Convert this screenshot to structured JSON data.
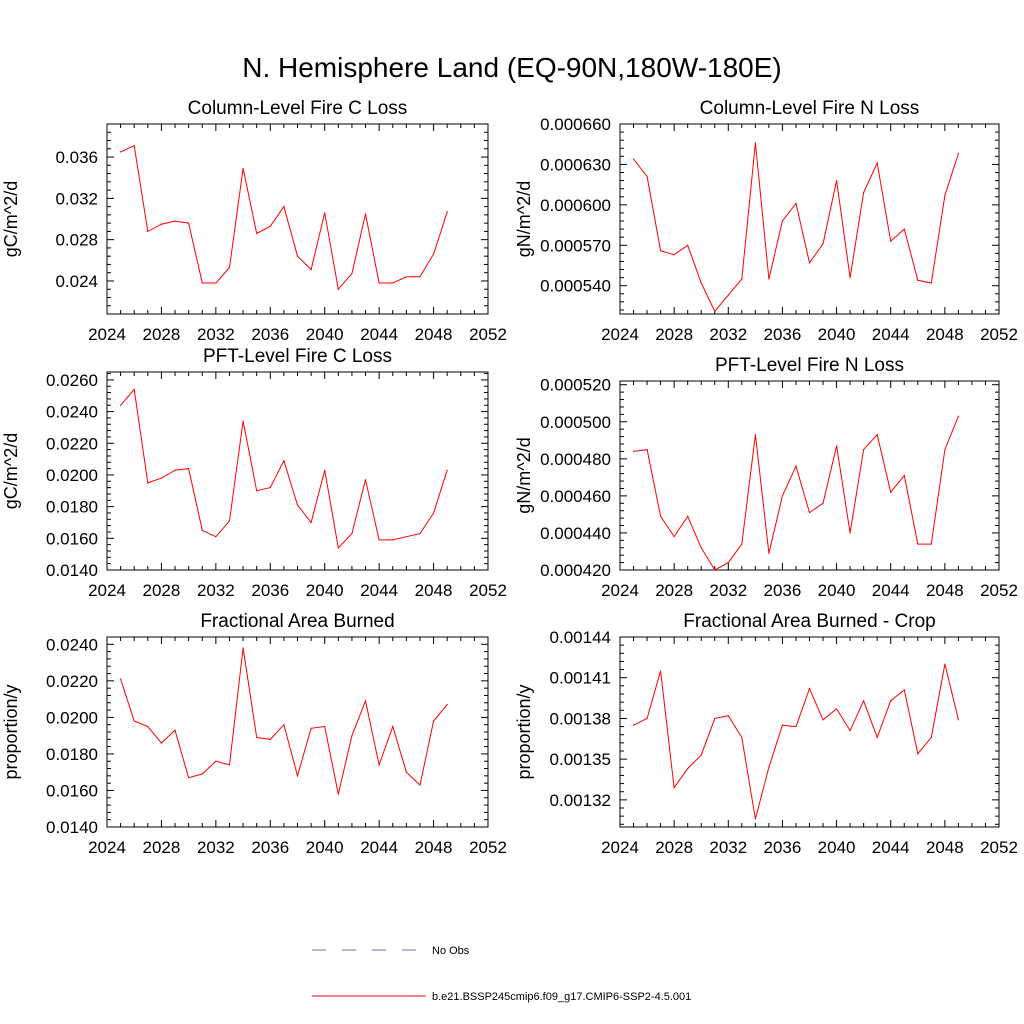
{
  "figure": {
    "title": "N. Hemisphere Land (EQ-90N,180W-180E)",
    "colors": {
      "model_line": "#ff0000",
      "obs_line": "#6a6ab8",
      "axis": "#000000"
    }
  },
  "legend": {
    "entries": [
      {
        "label": "No Obs",
        "style": "dashed",
        "color": "#6a6ab8"
      },
      {
        "label": "b.e21.BSSP245cmip6.f09_g17.CMIP6-SSP2-4.5.001",
        "style": "solid",
        "color": "#ff0000"
      }
    ]
  },
  "chart_data": [
    {
      "type": "line",
      "title": "Column-Level Fire C Loss",
      "xlabel": "",
      "ylabel": "gC/m^2/d",
      "xlim": [
        2024,
        2052
      ],
      "ylim": [
        0.0208,
        0.0392
      ],
      "xticks": [
        "2024",
        "2028",
        "2032",
        "2036",
        "2040",
        "2044",
        "2048",
        "2052"
      ],
      "yticks": [
        0.024,
        0.028,
        0.032,
        0.036
      ],
      "ytick_labels": [
        "0.024",
        "0.028",
        "0.032",
        "0.036"
      ],
      "x": [
        2025,
        2026,
        2027,
        2028,
        2029,
        2030,
        2031,
        2032,
        2033,
        2034,
        2035,
        2036,
        2037,
        2038,
        2039,
        2040,
        2041,
        2042,
        2043,
        2044,
        2045,
        2046,
        2047,
        2048,
        2049
      ],
      "series": [
        {
          "values": [
            0.0365,
            0.0371,
            0.0288,
            0.0295,
            0.0298,
            0.0296,
            0.0238,
            0.0238,
            0.0253,
            0.0349,
            0.0286,
            0.0293,
            0.0312,
            0.0264,
            0.0251,
            0.0306,
            0.0232,
            0.0247,
            0.0305,
            0.0238,
            0.0238,
            0.0244,
            0.0244,
            0.0266,
            0.0307
          ]
        }
      ]
    },
    {
      "type": "line",
      "title": "Column-Level Fire N Loss",
      "xlabel": "",
      "ylabel": "gN/m^2/d",
      "xlim": [
        2024,
        2052
      ],
      "ylim": [
        0.000519,
        0.00066
      ],
      "xticks": [
        "2024",
        "2028",
        "2032",
        "2036",
        "2040",
        "2044",
        "2048",
        "2052"
      ],
      "yticks": [
        0.00054,
        0.00057,
        0.0006,
        0.00063,
        0.00066
      ],
      "ytick_labels": [
        "0.000540",
        "0.000570",
        "0.000600",
        "0.000630",
        "0.000660"
      ],
      "x": [
        2025,
        2026,
        2027,
        2028,
        2029,
        2030,
        2031,
        2032,
        2033,
        2034,
        2035,
        2036,
        2037,
        2038,
        2039,
        2040,
        2041,
        2042,
        2043,
        2044,
        2045,
        2046,
        2047,
        2048,
        2049
      ],
      "series": [
        {
          "values": [
            0.000634,
            0.000621,
            0.000566,
            0.000563,
            0.00057,
            0.000542,
            0.000521,
            0.000533,
            0.000545,
            0.000646,
            0.000545,
            0.000588,
            0.000601,
            0.000557,
            0.000571,
            0.000618,
            0.000546,
            0.000609,
            0.000631,
            0.000573,
            0.000582,
            0.000544,
            0.000542,
            0.000607,
            0.000638
          ]
        }
      ]
    },
    {
      "type": "line",
      "title": "PFT-Level Fire C Loss",
      "xlabel": "",
      "ylabel": "gC/m^2/d",
      "xlim": [
        2024,
        2052
      ],
      "ylim": [
        0.014,
        0.0265
      ],
      "xticks": [
        "2024",
        "2028",
        "2032",
        "2036",
        "2040",
        "2044",
        "2048",
        "2052"
      ],
      "yticks": [
        0.014,
        0.016,
        0.018,
        0.02,
        0.022,
        0.024,
        0.026
      ],
      "ytick_labels": [
        "0.0140",
        "0.0160",
        "0.0180",
        "0.0200",
        "0.0220",
        "0.0240",
        "0.0260"
      ],
      "x": [
        2025,
        2026,
        2027,
        2028,
        2029,
        2030,
        2031,
        2032,
        2033,
        2034,
        2035,
        2036,
        2037,
        2038,
        2039,
        2040,
        2041,
        2042,
        2043,
        2044,
        2045,
        2046,
        2047,
        2048,
        2049
      ],
      "series": [
        {
          "values": [
            0.0244,
            0.0254,
            0.0195,
            0.0198,
            0.0203,
            0.0204,
            0.0165,
            0.0161,
            0.0171,
            0.0234,
            0.019,
            0.0192,
            0.0209,
            0.0181,
            0.017,
            0.0203,
            0.0154,
            0.0163,
            0.0197,
            0.0159,
            0.0159,
            0.0161,
            0.0163,
            0.0176,
            0.0203
          ]
        }
      ]
    },
    {
      "type": "line",
      "title": "PFT-Level Fire N Loss",
      "xlabel": "",
      "ylabel": "gN/m^2/d",
      "xlim": [
        2024,
        2052
      ],
      "ylim": [
        0.00042,
        0.000522
      ],
      "xticks": [
        "2024",
        "2028",
        "2032",
        "2036",
        "2040",
        "2044",
        "2048",
        "2052"
      ],
      "yticks": [
        0.00042,
        0.00044,
        0.00046,
        0.00048,
        0.0005,
        0.00052
      ],
      "ytick_labels": [
        "0.000420",
        "0.000440",
        "0.000460",
        "0.000480",
        "0.000500",
        "0.000520"
      ],
      "x": [
        2025,
        2026,
        2027,
        2028,
        2029,
        2030,
        2031,
        2032,
        2033,
        2034,
        2035,
        2036,
        2037,
        2038,
        2039,
        2040,
        2041,
        2042,
        2043,
        2044,
        2045,
        2046,
        2047,
        2048,
        2049
      ],
      "series": [
        {
          "values": [
            0.000484,
            0.000485,
            0.000449,
            0.000438,
            0.000449,
            0.000432,
            0.00042,
            0.000424,
            0.000434,
            0.000493,
            0.000429,
            0.00046,
            0.000476,
            0.000451,
            0.000456,
            0.000487,
            0.00044,
            0.000485,
            0.000493,
            0.000462,
            0.000471,
            0.000434,
            0.000434,
            0.000485,
            0.000503
          ]
        }
      ]
    },
    {
      "type": "line",
      "title": "Fractional Area Burned",
      "xlabel": "",
      "ylabel": "proportion/y",
      "xlim": [
        2024,
        2052
      ],
      "ylim": [
        0.014,
        0.0244
      ],
      "xticks": [
        "2024",
        "2028",
        "2032",
        "2036",
        "2040",
        "2044",
        "2048",
        "2052"
      ],
      "yticks": [
        0.014,
        0.016,
        0.018,
        0.02,
        0.022,
        0.024
      ],
      "ytick_labels": [
        "0.0140",
        "0.0160",
        "0.0180",
        "0.0200",
        "0.0220",
        "0.0240"
      ],
      "x": [
        2025,
        2026,
        2027,
        2028,
        2029,
        2030,
        2031,
        2032,
        2033,
        2034,
        2035,
        2036,
        2037,
        2038,
        2039,
        2040,
        2041,
        2042,
        2043,
        2044,
        2045,
        2046,
        2047,
        2048,
        2049
      ],
      "series": [
        {
          "values": [
            0.0221,
            0.0198,
            0.0195,
            0.0186,
            0.0193,
            0.0167,
            0.0169,
            0.0176,
            0.0174,
            0.0238,
            0.0189,
            0.0188,
            0.0196,
            0.0168,
            0.0194,
            0.0195,
            0.0158,
            0.019,
            0.0209,
            0.0174,
            0.0195,
            0.017,
            0.0163,
            0.0198,
            0.0207
          ]
        }
      ]
    },
    {
      "type": "line",
      "title": "Fractional Area Burned - Crop",
      "xlabel": "",
      "ylabel": "proportion/y",
      "xlim": [
        2024,
        2052
      ],
      "ylim": [
        0.0013,
        0.00144
      ],
      "xticks": [
        "2024",
        "2028",
        "2032",
        "2036",
        "2040",
        "2044",
        "2048",
        "2052"
      ],
      "yticks": [
        0.00132,
        0.00135,
        0.00138,
        0.00141,
        0.00144
      ],
      "ytick_labels": [
        "0.00132",
        "0.00135",
        "0.00138",
        "0.00141",
        "0.00144"
      ],
      "x": [
        2025,
        2026,
        2027,
        2028,
        2029,
        2030,
        2031,
        2032,
        2033,
        2034,
        2035,
        2036,
        2037,
        2038,
        2039,
        2040,
        2041,
        2042,
        2043,
        2044,
        2045,
        2046,
        2047,
        2048,
        2049
      ],
      "series": [
        {
          "values": [
            0.001375,
            0.00138,
            0.001415,
            0.001329,
            0.001343,
            0.001353,
            0.00138,
            0.001382,
            0.001366,
            0.001306,
            0.001344,
            0.001375,
            0.001374,
            0.001402,
            0.001379,
            0.001387,
            0.001371,
            0.001393,
            0.001366,
            0.001393,
            0.001401,
            0.001354,
            0.001366,
            0.00142,
            0.001379
          ]
        }
      ]
    }
  ]
}
